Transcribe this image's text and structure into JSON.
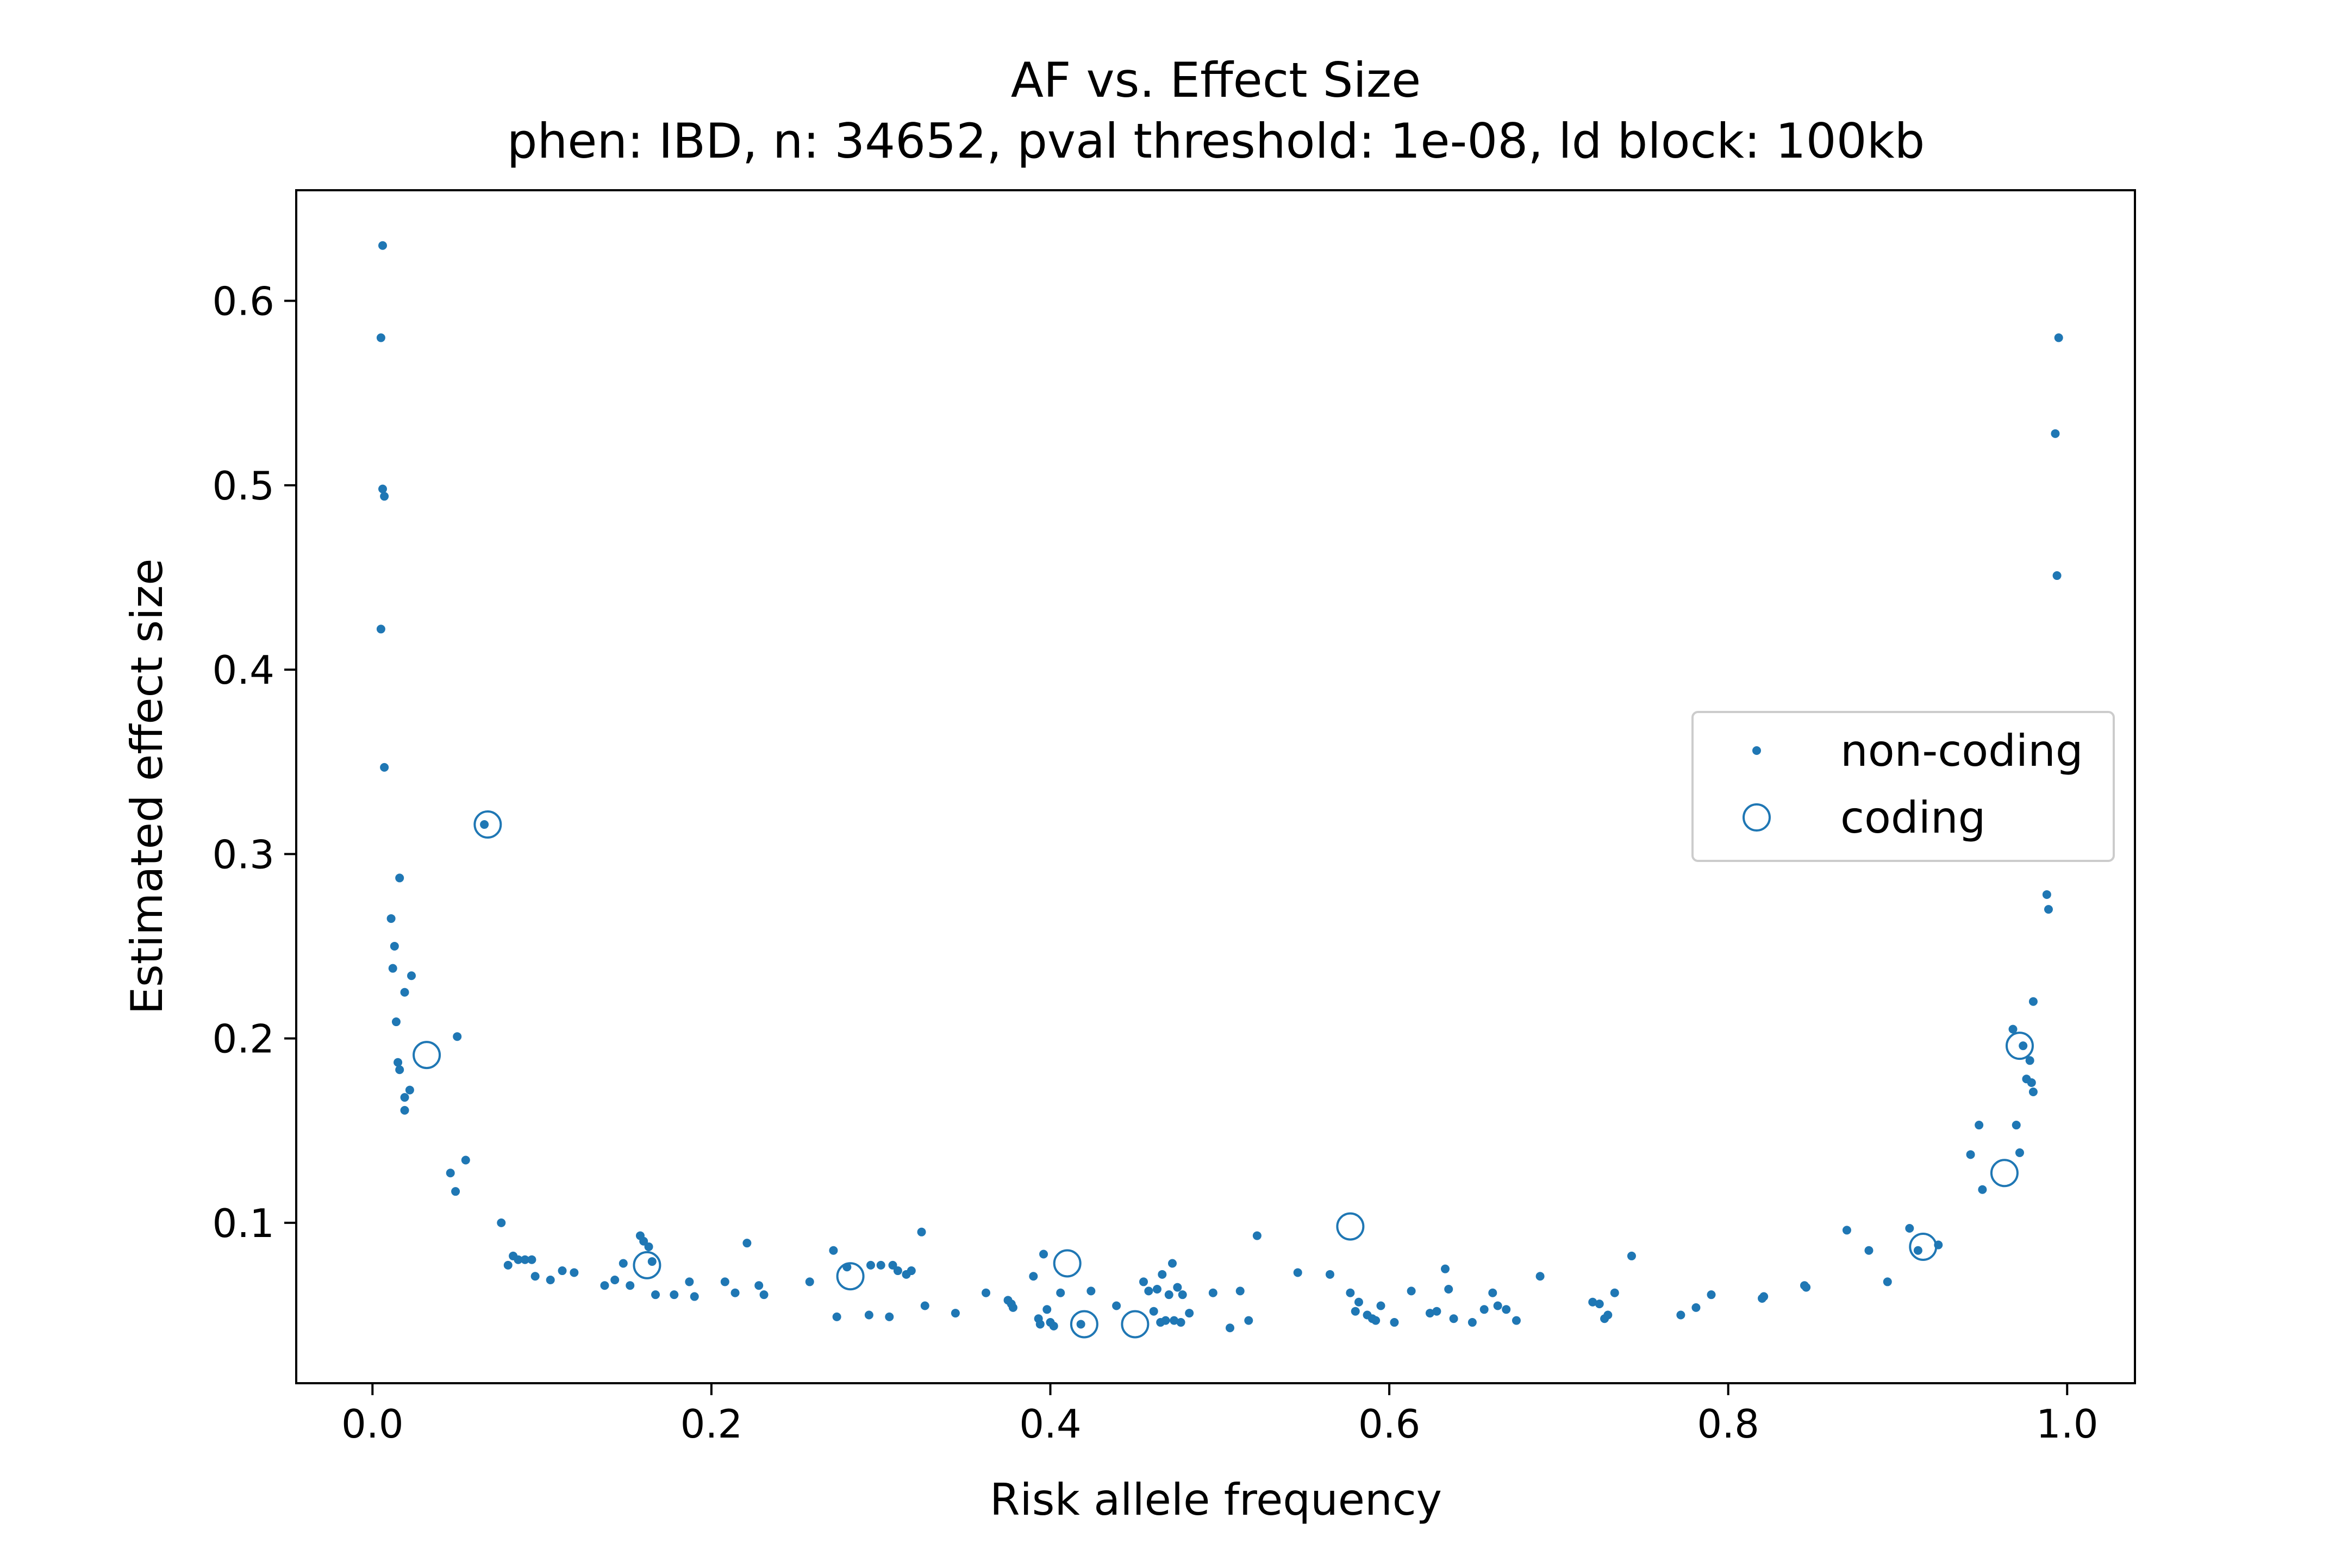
{
  "chart_data": {
    "type": "scatter",
    "title": "AF vs. Effect Size",
    "subtitle": "phen: IBD, n: 34652, pval threshold: 1e-08, ld block: 100kb",
    "xlabel": "Risk allele frequency",
    "ylabel": "Estimated effect size",
    "xlim": [
      -0.045,
      1.04
    ],
    "ylim": [
      0.013,
      0.66
    ],
    "xticks": [
      0.0,
      0.2,
      0.4,
      0.6,
      0.8,
      1.0
    ],
    "xtick_labels": [
      "0.0",
      "0.2",
      "0.4",
      "0.6",
      "0.8",
      "1.0"
    ],
    "yticks": [
      0.1,
      0.2,
      0.3,
      0.4,
      0.5,
      0.6
    ],
    "ytick_labels": [
      "0.1",
      "0.2",
      "0.3",
      "0.4",
      "0.5",
      "0.6"
    ],
    "grid": false,
    "legend_position": "center-right",
    "color": "#1f77b4",
    "series": [
      {
        "name": "non-coding",
        "marker": "dot",
        "points": [
          [
            0.006,
            0.63
          ],
          [
            0.005,
            0.58
          ],
          [
            0.006,
            0.498
          ],
          [
            0.007,
            0.494
          ],
          [
            0.005,
            0.422
          ],
          [
            0.007,
            0.347
          ],
          [
            0.016,
            0.287
          ],
          [
            0.011,
            0.265
          ],
          [
            0.013,
            0.25
          ],
          [
            0.012,
            0.238
          ],
          [
            0.023,
            0.234
          ],
          [
            0.019,
            0.225
          ],
          [
            0.014,
            0.209
          ],
          [
            0.015,
            0.187
          ],
          [
            0.016,
            0.183
          ],
          [
            0.022,
            0.172
          ],
          [
            0.019,
            0.168
          ],
          [
            0.019,
            0.161
          ],
          [
            0.05,
            0.201
          ],
          [
            0.055,
            0.134
          ],
          [
            0.046,
            0.127
          ],
          [
            0.049,
            0.117
          ],
          [
            0.066,
            0.316
          ],
          [
            0.076,
            0.1
          ],
          [
            0.08,
            0.077
          ],
          [
            0.083,
            0.082
          ],
          [
            0.086,
            0.08
          ],
          [
            0.09,
            0.08
          ],
          [
            0.094,
            0.08
          ],
          [
            0.096,
            0.071
          ],
          [
            0.105,
            0.069
          ],
          [
            0.112,
            0.074
          ],
          [
            0.119,
            0.073
          ],
          [
            0.137,
            0.066
          ],
          [
            0.143,
            0.069
          ],
          [
            0.148,
            0.078
          ],
          [
            0.152,
            0.066
          ],
          [
            0.158,
            0.093
          ],
          [
            0.16,
            0.09
          ],
          [
            0.163,
            0.087
          ],
          [
            0.165,
            0.079
          ],
          [
            0.167,
            0.061
          ],
          [
            0.178,
            0.061
          ],
          [
            0.187,
            0.068
          ],
          [
            0.19,
            0.06
          ],
          [
            0.208,
            0.068
          ],
          [
            0.214,
            0.062
          ],
          [
            0.221,
            0.089
          ],
          [
            0.228,
            0.066
          ],
          [
            0.231,
            0.061
          ],
          [
            0.258,
            0.068
          ],
          [
            0.272,
            0.085
          ],
          [
            0.274,
            0.049
          ],
          [
            0.28,
            0.076
          ],
          [
            0.293,
            0.05
          ],
          [
            0.294,
            0.077
          ],
          [
            0.3,
            0.077
          ],
          [
            0.305,
            0.049
          ],
          [
            0.307,
            0.077
          ],
          [
            0.31,
            0.074
          ],
          [
            0.315,
            0.072
          ],
          [
            0.318,
            0.074
          ],
          [
            0.324,
            0.095
          ],
          [
            0.326,
            0.055
          ],
          [
            0.344,
            0.051
          ],
          [
            0.362,
            0.062
          ],
          [
            0.375,
            0.058
          ],
          [
            0.377,
            0.056
          ],
          [
            0.378,
            0.054
          ],
          [
            0.39,
            0.071
          ],
          [
            0.393,
            0.048
          ],
          [
            0.394,
            0.045
          ],
          [
            0.396,
            0.083
          ],
          [
            0.398,
            0.053
          ],
          [
            0.4,
            0.046
          ],
          [
            0.402,
            0.044
          ],
          [
            0.406,
            0.062
          ],
          [
            0.418,
            0.045
          ],
          [
            0.424,
            0.063
          ],
          [
            0.439,
            0.055
          ],
          [
            0.455,
            0.068
          ],
          [
            0.458,
            0.063
          ],
          [
            0.461,
            0.052
          ],
          [
            0.463,
            0.064
          ],
          [
            0.465,
            0.046
          ],
          [
            0.466,
            0.072
          ],
          [
            0.468,
            0.047
          ],
          [
            0.47,
            0.061
          ],
          [
            0.472,
            0.078
          ],
          [
            0.473,
            0.047
          ],
          [
            0.475,
            0.065
          ],
          [
            0.477,
            0.046
          ],
          [
            0.478,
            0.061
          ],
          [
            0.482,
            0.051
          ],
          [
            0.496,
            0.062
          ],
          [
            0.506,
            0.043
          ],
          [
            0.512,
            0.063
          ],
          [
            0.517,
            0.047
          ],
          [
            0.522,
            0.093
          ],
          [
            0.546,
            0.073
          ],
          [
            0.565,
            0.072
          ],
          [
            0.577,
            0.062
          ],
          [
            0.58,
            0.052
          ],
          [
            0.582,
            0.057
          ],
          [
            0.587,
            0.05
          ],
          [
            0.59,
            0.048
          ],
          [
            0.592,
            0.047
          ],
          [
            0.595,
            0.055
          ],
          [
            0.603,
            0.046
          ],
          [
            0.613,
            0.063
          ],
          [
            0.624,
            0.051
          ],
          [
            0.628,
            0.052
          ],
          [
            0.633,
            0.075
          ],
          [
            0.635,
            0.064
          ],
          [
            0.638,
            0.048
          ],
          [
            0.649,
            0.046
          ],
          [
            0.656,
            0.053
          ],
          [
            0.661,
            0.062
          ],
          [
            0.664,
            0.055
          ],
          [
            0.669,
            0.053
          ],
          [
            0.675,
            0.047
          ],
          [
            0.689,
            0.071
          ],
          [
            0.72,
            0.057
          ],
          [
            0.724,
            0.056
          ],
          [
            0.727,
            0.048
          ],
          [
            0.729,
            0.05
          ],
          [
            0.733,
            0.062
          ],
          [
            0.743,
            0.082
          ],
          [
            0.772,
            0.05
          ],
          [
            0.781,
            0.054
          ],
          [
            0.79,
            0.061
          ],
          [
            0.82,
            0.059
          ],
          [
            0.821,
            0.06
          ],
          [
            0.845,
            0.066
          ],
          [
            0.846,
            0.065
          ],
          [
            0.87,
            0.096
          ],
          [
            0.883,
            0.085
          ],
          [
            0.894,
            0.068
          ],
          [
            0.907,
            0.097
          ],
          [
            0.912,
            0.085
          ],
          [
            0.924,
            0.088
          ],
          [
            0.943,
            0.137
          ],
          [
            0.948,
            0.153
          ],
          [
            0.95,
            0.118
          ],
          [
            0.968,
            0.205
          ],
          [
            0.97,
            0.153
          ],
          [
            0.972,
            0.138
          ],
          [
            0.974,
            0.196
          ],
          [
            0.976,
            0.178
          ],
          [
            0.978,
            0.188
          ],
          [
            0.979,
            0.176
          ],
          [
            0.98,
            0.171
          ],
          [
            0.98,
            0.22
          ],
          [
            0.988,
            0.278
          ],
          [
            0.989,
            0.27
          ],
          [
            0.993,
            0.528
          ],
          [
            0.994,
            0.451
          ],
          [
            0.995,
            0.58
          ]
        ]
      },
      {
        "name": "coding",
        "marker": "circle",
        "points": [
          [
            0.068,
            0.316
          ],
          [
            0.032,
            0.191
          ],
          [
            0.162,
            0.077
          ],
          [
            0.282,
            0.071
          ],
          [
            0.41,
            0.078
          ],
          [
            0.42,
            0.045
          ],
          [
            0.45,
            0.045
          ],
          [
            0.577,
            0.098
          ],
          [
            0.915,
            0.087
          ],
          [
            0.963,
            0.127
          ],
          [
            0.972,
            0.196
          ]
        ]
      }
    ]
  }
}
